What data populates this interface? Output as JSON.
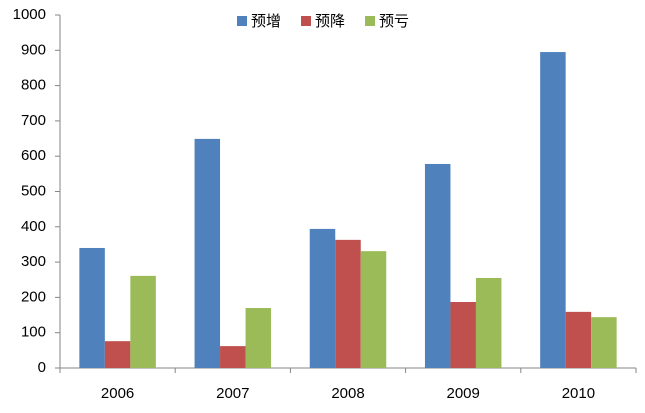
{
  "chart_data": {
    "type": "bar",
    "categories": [
      "2006",
      "2007",
      "2008",
      "2009",
      "2010"
    ],
    "series": [
      {
        "name": "预增",
        "color": "#4f81bd",
        "values": [
          340,
          649,
          394,
          578,
          895
        ]
      },
      {
        "name": "预降",
        "color": "#c0504d",
        "values": [
          76,
          62,
          363,
          187,
          159
        ]
      },
      {
        "name": "预亏",
        "color": "#9bbb59",
        "values": [
          261,
          170,
          331,
          255,
          144
        ]
      }
    ],
    "ylim": [
      0,
      1000
    ],
    "yticks": [
      0,
      100,
      200,
      300,
      400,
      500,
      600,
      700,
      800,
      900,
      1000
    ],
    "grid": false,
    "legend": "top"
  }
}
